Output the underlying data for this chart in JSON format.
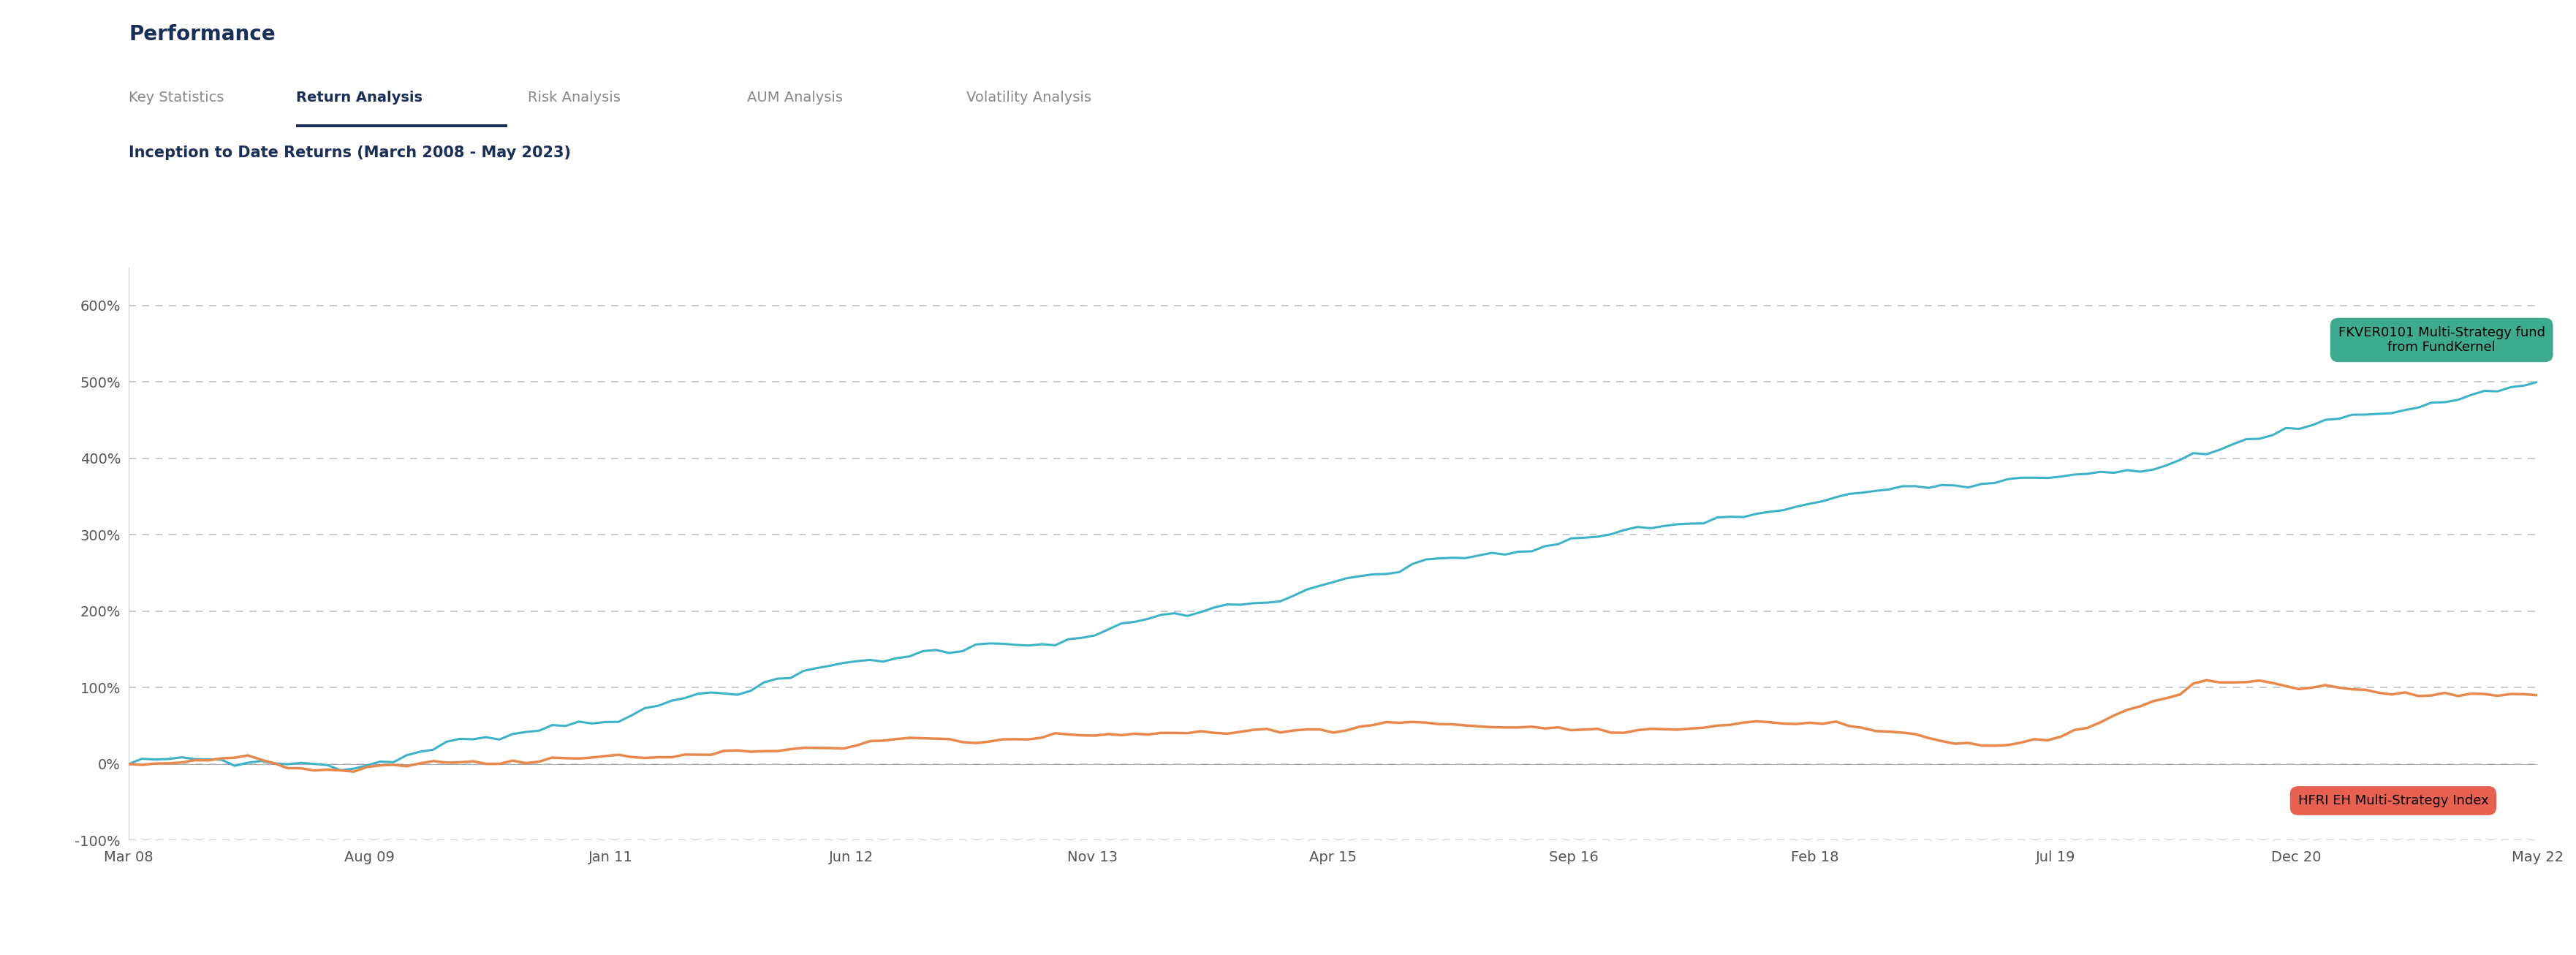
{
  "title": "Performance",
  "subtitle": "Inception to Date Returns (March 2008 - May 2023)",
  "tab_items": [
    "Key Statistics",
    "Return Analysis",
    "Risk Analysis",
    "AUM Analysis",
    "Volatility Analysis"
  ],
  "active_tab": "Return Analysis",
  "ylim": [
    -100,
    650
  ],
  "yticks": [
    -100,
    0,
    100,
    200,
    300,
    400,
    500,
    600
  ],
  "ytick_labels": [
    "-100%",
    "0%",
    "100%",
    "200%",
    "300%",
    "400%",
    "500%",
    "600%"
  ],
  "xtick_labels": [
    "Mar 08",
    "Aug 09",
    "Jan 11",
    "Jun 12",
    "Nov 13",
    "Apr 15",
    "Sep 16",
    "Feb 18",
    "Jul 19",
    "Dec 20",
    "May 22"
  ],
  "fund_label": "FKVER0101 Multi-Strategy fund\nfrom FundKernel",
  "index_label": "HFRI EH Multi-Strategy Index",
  "fund_color": "#3db3c8",
  "index_color": "#e8884a",
  "fund_label_bg": "#3dab8e",
  "index_label_bg": "#e86050",
  "background_color": "#ffffff",
  "grid_color": "#b8c4ce",
  "title_color": "#1a2e5a",
  "subtitle_color": "#1a2e5a",
  "tab_active_color": "#1a2e5a",
  "tab_inactive_color": "#888888",
  "tab_underline_color": "#1a2e5a",
  "n_points": 183
}
